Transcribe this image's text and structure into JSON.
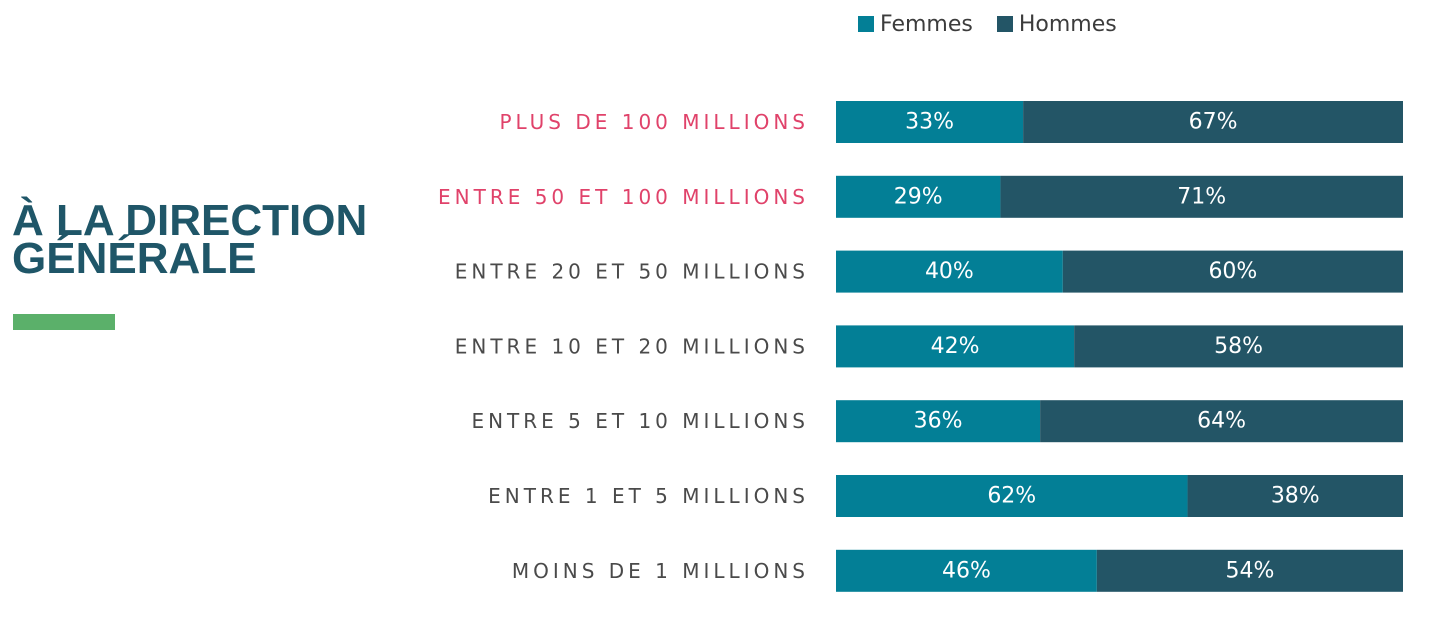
{
  "title": {
    "line1": "À LA DIRECTION",
    "line2": "GÉNÉRALE"
  },
  "colors": {
    "title": "#1f5668",
    "accent_bar": "#5bb06a",
    "femmes": "#037f96",
    "hommes": "#235566",
    "label_default": "#4a4a4a",
    "label_highlight": "#e0426a"
  },
  "legend": [
    {
      "label": "Femmes",
      "color": "#037f96"
    },
    {
      "label": "Hommes",
      "color": "#235566"
    }
  ],
  "chart_data": {
    "type": "bar",
    "orientation": "horizontal",
    "stacked": "percent",
    "categories": [
      "PLUS DE 100 MILLIONS",
      "ENTRE 50 ET 100 MILLIONS",
      "ENTRE 20 ET 50 MILLIONS",
      "ENTRE 10 ET 20 MILLIONS",
      "ENTRE 5 ET 10 MILLIONS",
      "ENTRE 1 ET 5 MILLIONS",
      "MOINS DE 1 MILLIONS"
    ],
    "highlighted_categories": [
      "PLUS DE 100 MILLIONS",
      "ENTRE 50 ET 100 MILLIONS"
    ],
    "series": [
      {
        "name": "Femmes",
        "values": [
          33,
          29,
          40,
          42,
          36,
          62,
          46
        ],
        "labels": [
          "33%",
          "29%",
          "40%",
          "42%",
          "36%",
          "62%",
          "46%"
        ]
      },
      {
        "name": "Hommes",
        "values": [
          67,
          71,
          60,
          58,
          64,
          38,
          54
        ],
        "labels": [
          "67%",
          "71%",
          "60%",
          "58%",
          "64%",
          "38%",
          "54%"
        ]
      }
    ],
    "xlim": [
      0,
      100
    ],
    "legend_position": "top",
    "grid": false
  }
}
